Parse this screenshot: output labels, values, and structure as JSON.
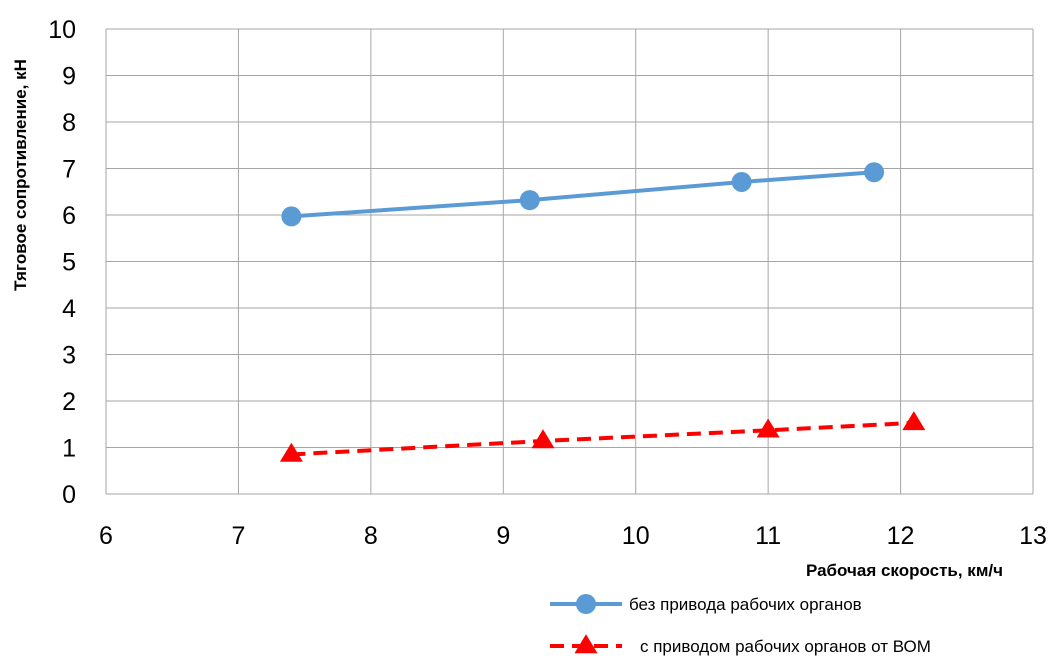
{
  "chart_data": {
    "type": "line",
    "xlabel": "Рабочая скорость, км/ч",
    "ylabel": "Тяговое сопротивление, кН",
    "xlim": [
      6,
      13
    ],
    "ylim": [
      0,
      10
    ],
    "xticks": [
      "6",
      "7",
      "8",
      "9",
      "10",
      "11",
      "12",
      "13"
    ],
    "yticks": [
      "0",
      "1",
      "2",
      "3",
      "4",
      "5",
      "6",
      "7",
      "8",
      "9",
      "10"
    ],
    "grid": true,
    "legend_position": "bottom-right",
    "series": [
      {
        "name": "без привода рабочих органов",
        "color": "#5B9BD5",
        "marker": "circle",
        "line_style": "solid",
        "x": [
          7.4,
          9.2,
          10.8,
          11.8
        ],
        "y": [
          5.97,
          6.32,
          6.71,
          6.92
        ]
      },
      {
        "name": "с приводом рабочих органов от ВОМ",
        "color": "#FF0000",
        "marker": "triangle",
        "line_style": "dashed",
        "x": [
          7.4,
          9.3,
          11.0,
          12.1
        ],
        "y": [
          0.85,
          1.14,
          1.37,
          1.53
        ]
      }
    ]
  }
}
